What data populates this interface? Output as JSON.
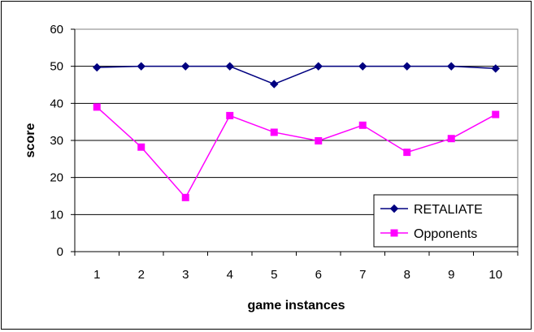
{
  "chart_data": {
    "type": "line",
    "title": "",
    "xlabel": "game instances",
    "ylabel": "score",
    "categories": [
      "1",
      "2",
      "3",
      "4",
      "5",
      "6",
      "7",
      "8",
      "9",
      "10"
    ],
    "ylim": [
      0,
      60
    ],
    "yticks": [
      "0",
      "10",
      "20",
      "30",
      "40",
      "50",
      "60"
    ],
    "grid": "horizontal",
    "legend_position": "bottom-right",
    "plot_background": "#ffffff",
    "series": [
      {
        "name": "RETALIATE",
        "color": "#000080",
        "marker": "diamond",
        "values": [
          49.7,
          50.0,
          50.0,
          50.0,
          45.2,
          50.0,
          50.0,
          50.0,
          50.0,
          49.4
        ]
      },
      {
        "name": "Opponents",
        "color": "#ff00ff",
        "marker": "square",
        "values": [
          39.0,
          28.2,
          14.6,
          36.7,
          32.2,
          29.9,
          34.1,
          26.8,
          30.5,
          37.0
        ]
      }
    ]
  }
}
